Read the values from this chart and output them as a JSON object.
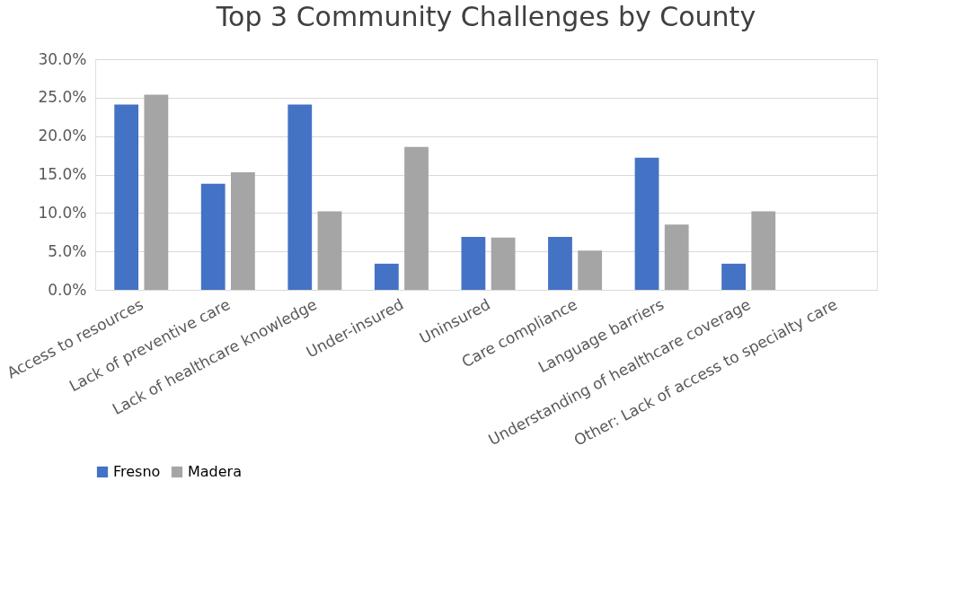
{
  "chart_data": {
    "type": "bar",
    "title": "Top 3 Community Challenges by County",
    "categories": [
      "Access to resources",
      "Lack of preventive care",
      "Lack of healthcare knowledge",
      "Under-insured",
      "Uninsured",
      "Care compliance",
      "Language barriers",
      "Understanding of healthcare coverage",
      "Other: Lack of access to specialty care"
    ],
    "series": [
      {
        "name": "Fresno",
        "color": "#4472c4",
        "values": [
          24.1,
          13.8,
          24.1,
          3.4,
          6.9,
          6.9,
          17.2,
          3.4,
          0
        ]
      },
      {
        "name": "Madera",
        "color": "#a5a5a5",
        "values": [
          25.4,
          15.3,
          10.2,
          18.6,
          6.8,
          5.1,
          8.5,
          10.2,
          0
        ]
      }
    ],
    "ylim": [
      0,
      30
    ],
    "yticks": [
      {
        "value": 0,
        "label": "0.0%"
      },
      {
        "value": 5,
        "label": "5.0%"
      },
      {
        "value": 10,
        "label": "10.0%"
      },
      {
        "value": 15,
        "label": "15.0%"
      },
      {
        "value": 20,
        "label": "20.0%"
      },
      {
        "value": 25,
        "label": "25.0%"
      },
      {
        "value": 30,
        "label": "30.0%"
      }
    ],
    "grid": "y",
    "legend": "bottom"
  }
}
